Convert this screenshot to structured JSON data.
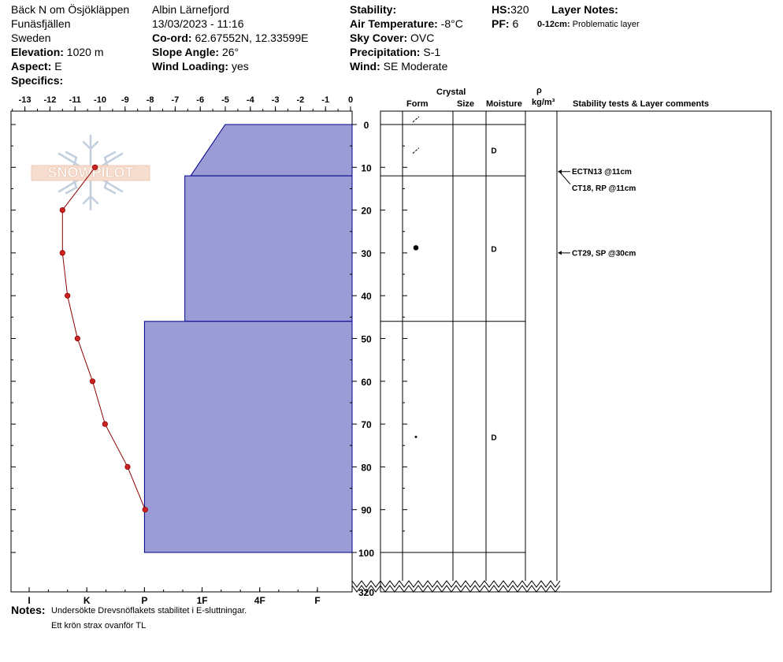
{
  "header": {
    "location": "Bäck N om Ösjökläppen",
    "area": "Funäsfjällen",
    "country": "Sweden",
    "elevation_label": "Elevation:",
    "elevation": "1020 m",
    "aspect_label": "Aspect:",
    "aspect": "E",
    "specifics_label": "Specifics:",
    "observer": "Albin  Lärnefjord",
    "datetime": "13/03/2023 - 11:16",
    "coord_label": "Co-ord:",
    "coord": "62.67552N, 12.33599E",
    "slope_label": "Slope Angle:",
    "slope": "26°",
    "wind_loading_label": "Wind Loading:",
    "wind_loading": "yes",
    "stability_label": "Stability:",
    "air_temp_label": "Air Temperature:",
    "air_temp": "-8°C",
    "sky_label": "Sky Cover:",
    "sky": "OVC",
    "precip_label": "Precipitation:",
    "precip": "S-1",
    "wind_label": "Wind:",
    "wind": " SE Moderate",
    "hs_label": "HS:",
    "hs": "320",
    "pf_label": "PF:",
    "pf": "6",
    "layer_notes_label": "Layer Notes:",
    "layer_note_range": "0-12cm:",
    "layer_note_text": "Problematic layer"
  },
  "notes": {
    "label": "Notes:",
    "line1": "Undersökte Drevsnöflakets stabilitet i E-sluttningar.",
    "line2": "Ett krön strax ovanför TL"
  },
  "columns": {
    "crystal": "Crystal",
    "form": "Form",
    "size": "Size",
    "moisture": "Moisture",
    "rho": "ρ",
    "density_unit": "kg/m³",
    "tests": "Stability tests & Layer comments"
  },
  "logo_text": "SNOWPILOT",
  "colors": {
    "hardness_fill": "#9b9bd6",
    "hardness_stroke": "#00008b",
    "temp_line": "#8b0000",
    "temp_point": "#cc2222"
  },
  "chart_data": {
    "type": "snow-profile",
    "temperature_axis": {
      "ticks": [
        -13,
        -12,
        -11,
        -10,
        -9,
        -8,
        -7,
        -6,
        -5,
        -4,
        -3,
        -2,
        -1,
        0
      ],
      "range": [
        -13.5,
        0
      ]
    },
    "hardness_axis": {
      "labels": [
        "I",
        "K",
        "P",
        "1F",
        "4F",
        "F"
      ]
    },
    "depth_axis": {
      "ticks": [
        0,
        10,
        20,
        30,
        40,
        50,
        60,
        70,
        80,
        90,
        100
      ],
      "bottom_label": "320",
      "range": [
        0,
        110
      ]
    },
    "temperature_profile": [
      {
        "depth": 10,
        "temp": -10.2
      },
      {
        "depth": 20,
        "temp": -11.5
      },
      {
        "depth": 30,
        "temp": -11.5
      },
      {
        "depth": 40,
        "temp": -11.3
      },
      {
        "depth": 50,
        "temp": -10.9
      },
      {
        "depth": 60,
        "temp": -10.3
      },
      {
        "depth": 70,
        "temp": -9.8
      },
      {
        "depth": 80,
        "temp": -8.9
      },
      {
        "depth": 90,
        "temp": -8.2
      }
    ],
    "hardness_layers": [
      {
        "top": 0,
        "bottom": 12,
        "hardness_top": "4F-",
        "hardness_bottom": "1F-",
        "level_top": 4.4,
        "level_bottom": 3.8
      },
      {
        "top": 12,
        "bottom": 46,
        "hardness": "1F-",
        "level": 3.7
      },
      {
        "top": 46,
        "bottom": 100,
        "hardness": "P",
        "level": 3.0
      }
    ],
    "layers": [
      {
        "top": 0,
        "bottom": 12,
        "form": "decomposing",
        "moisture": "D"
      },
      {
        "top": 12,
        "bottom": 46,
        "form": "round",
        "moisture": "D"
      },
      {
        "top": 46,
        "bottom": 100,
        "form": "small-round",
        "moisture": "D"
      }
    ],
    "tests": [
      {
        "depth": 11,
        "text": "ECTN13 @11cm"
      },
      {
        "depth": 11,
        "text": "CT18, RP @11cm"
      },
      {
        "depth": 30,
        "text": "CT29, SP @30cm"
      }
    ]
  }
}
